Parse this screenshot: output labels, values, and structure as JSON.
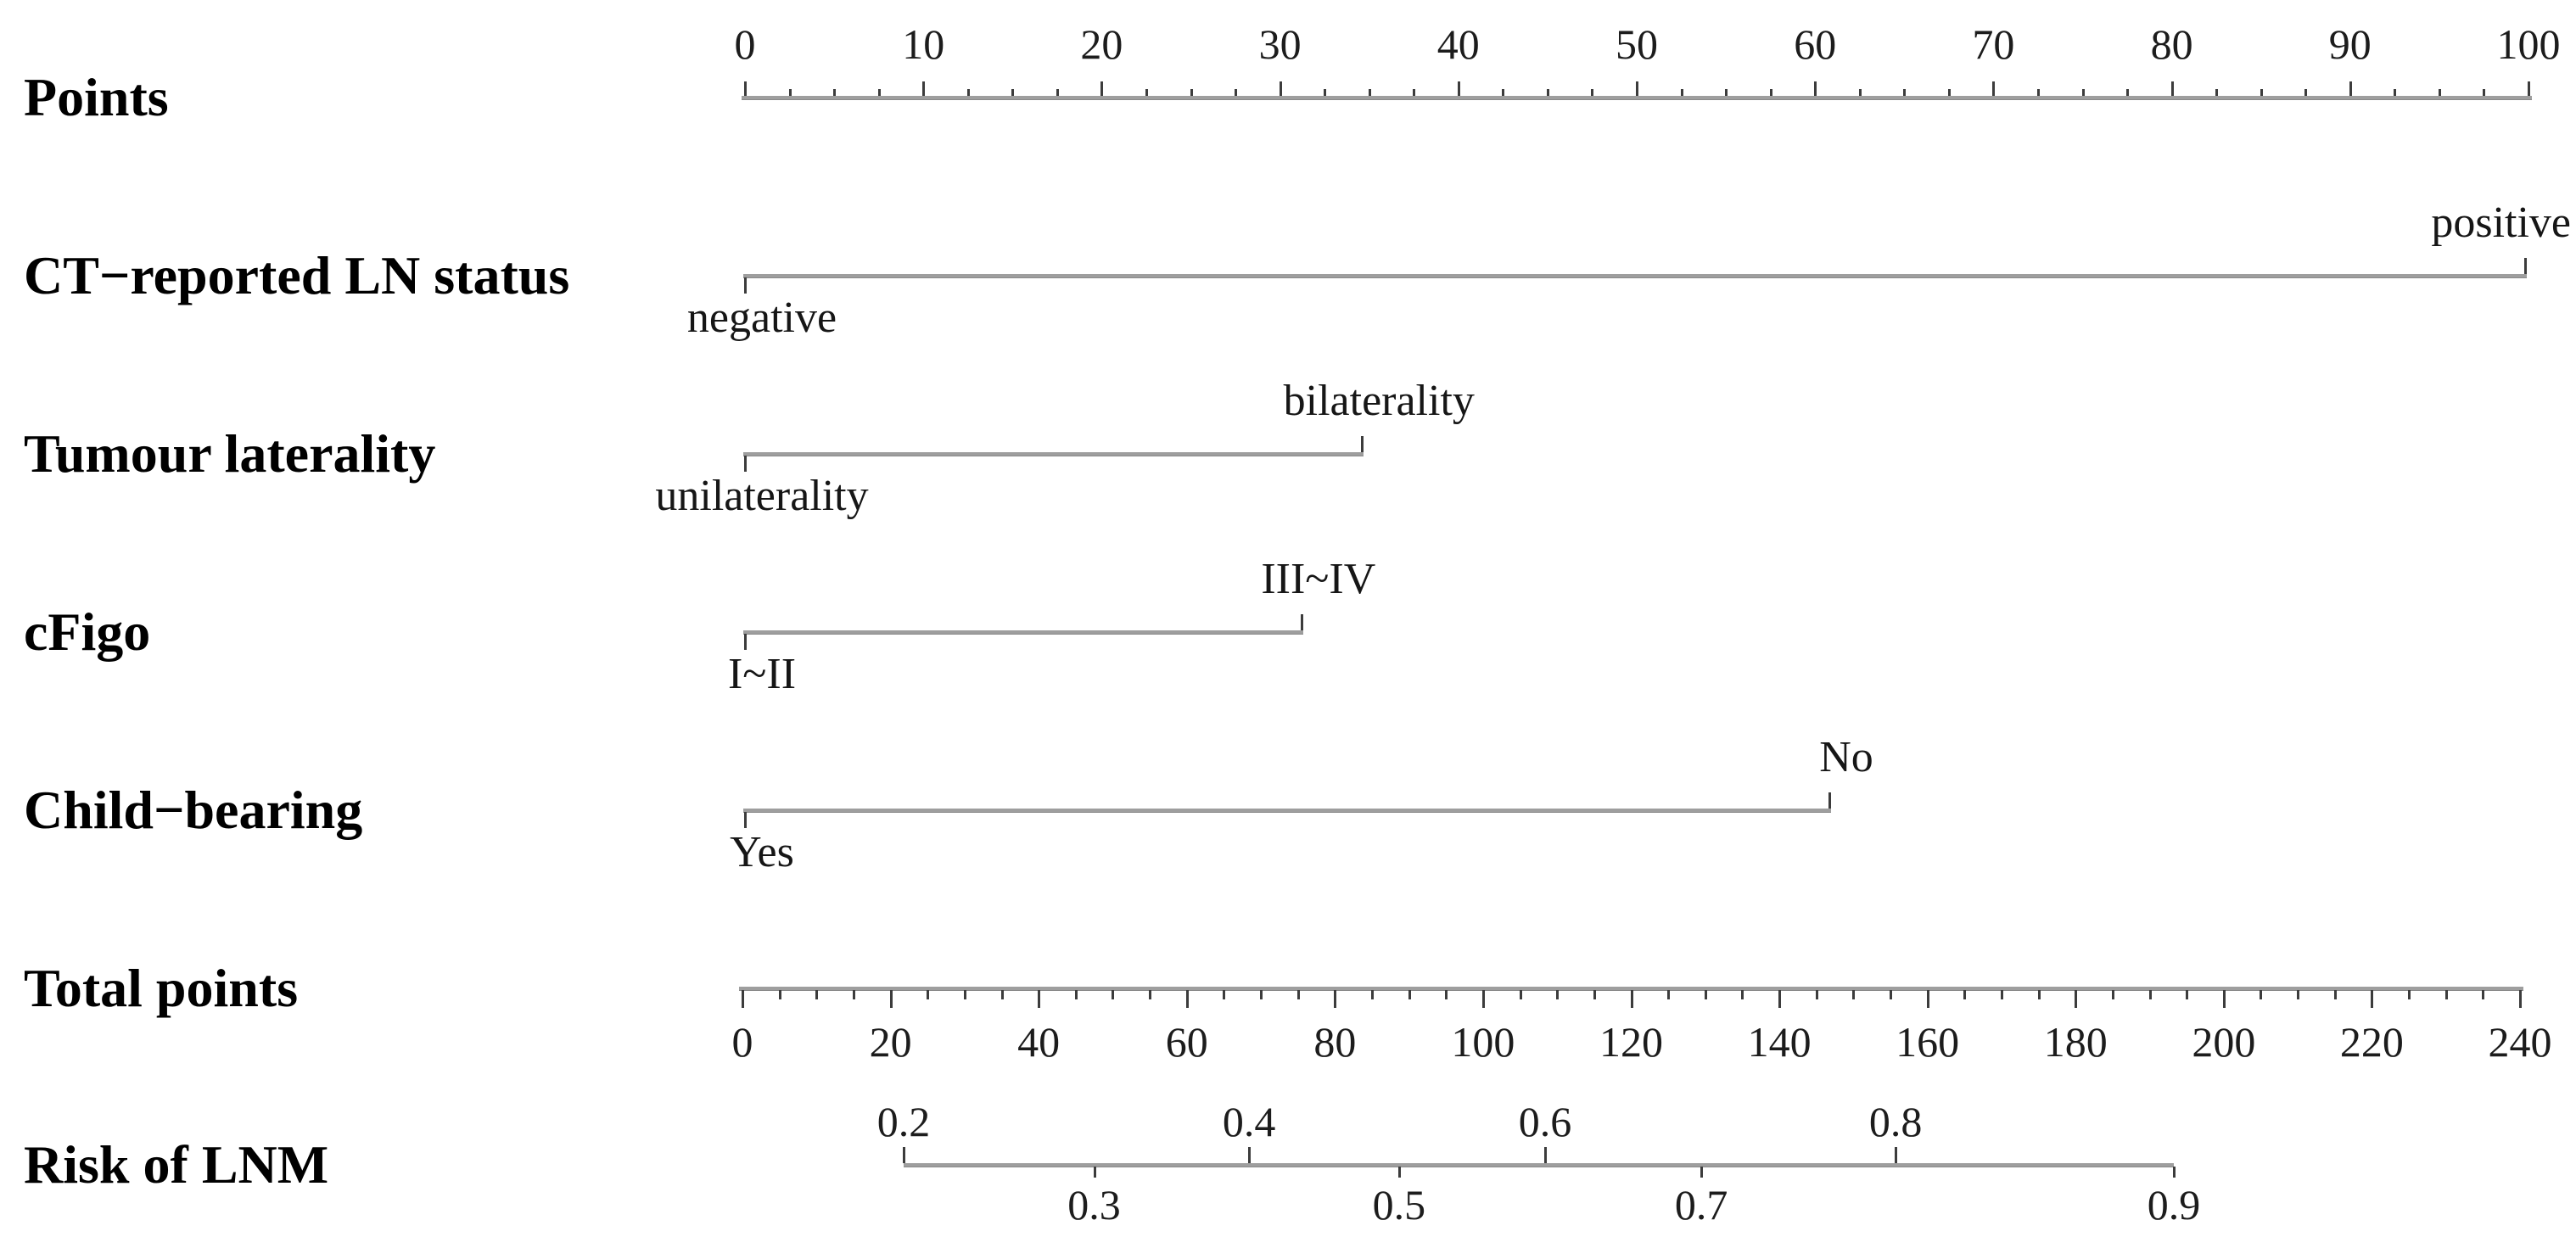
{
  "figure": {
    "background": "#ffffff",
    "kind": "nomogram prediction figure"
  },
  "colors": {
    "axis_line": "#9e9e9e",
    "tick": "#3c3c3c",
    "text": "#161616"
  },
  "chart_data": {
    "type": "nomogram",
    "title": "",
    "rows": [
      {
        "id": "points",
        "label": "Points"
      },
      {
        "id": "ct",
        "label": "CT−reported LN status"
      },
      {
        "id": "laterality",
        "label": "Tumour laterality"
      },
      {
        "id": "cfigo",
        "label": "cFigo"
      },
      {
        "id": "childbearing",
        "label": "Child−bearing"
      },
      {
        "id": "total",
        "label": "Total points"
      },
      {
        "id": "risk",
        "label": "Risk of LNM"
      }
    ],
    "points_axis": {
      "min": 0,
      "max": 100,
      "major_step": 10,
      "minor_step": 2.5,
      "tick_labels": [
        "0",
        "10",
        "20",
        "30",
        "40",
        "50",
        "60",
        "70",
        "80",
        "90",
        "100"
      ]
    },
    "predictors": [
      {
        "row": "ct",
        "low_label": "negative",
        "low_points": 0,
        "high_label": "positive",
        "high_points": 99.8
      },
      {
        "row": "laterality",
        "low_label": "unilaterality",
        "low_points": 0,
        "high_label": "bilaterality",
        "high_points": 34.6
      },
      {
        "row": "cfigo",
        "low_label": "I~II",
        "low_points": 0,
        "high_label": "III~IV",
        "high_points": 31.2
      },
      {
        "row": "childbearing",
        "low_label": "Yes",
        "low_points": 0,
        "high_label": "No",
        "high_points": 60.8
      }
    ],
    "total_axis": {
      "min": 0,
      "max": 240,
      "major_step": 20,
      "minor_step": 5,
      "tick_labels": [
        "0",
        "20",
        "40",
        "60",
        "80",
        "100",
        "120",
        "140",
        "160",
        "180",
        "200",
        "220",
        "240"
      ]
    },
    "risk_axis": {
      "scale": "logistic",
      "range": [
        0.2,
        0.9
      ],
      "ticks": [
        {
          "value": "0.2",
          "side": "above",
          "pos": 0.0
        },
        {
          "value": "0.3",
          "side": "below",
          "pos": 0.15
        },
        {
          "value": "0.4",
          "side": "above",
          "pos": 0.272
        },
        {
          "value": "0.5",
          "side": "below",
          "pos": 0.39
        },
        {
          "value": "0.6",
          "side": "above",
          "pos": 0.505
        },
        {
          "value": "0.7",
          "side": "below",
          "pos": 0.628
        },
        {
          "value": "0.8",
          "side": "above",
          "pos": 0.781
        },
        {
          "value": "0.9",
          "side": "below",
          "pos": 1.0
        }
      ]
    }
  }
}
